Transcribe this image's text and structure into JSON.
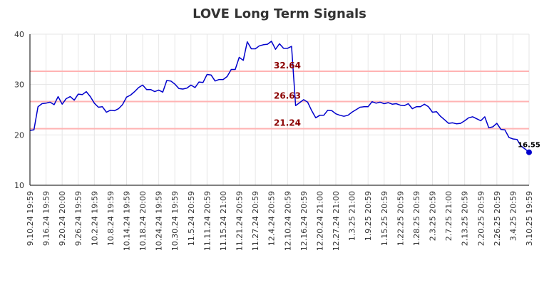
{
  "chart_data": {
    "type": "line",
    "title": "LOVE Long Term Signals",
    "xlabel": "",
    "ylabel": "",
    "ylim": [
      10,
      40
    ],
    "yticks": [
      10,
      20,
      30,
      40
    ],
    "grid": true,
    "x_tick_labels": [
      "9.10.24 19:59",
      "9.16.24 19:59",
      "9.20.24 20:00",
      "9.26.24 19:59",
      "10.2.24 19:59",
      "10.8.24 19:59",
      "10.14.24 19:59",
      "10.18.24 20:00",
      "10.24.24 19:59",
      "10.30.24 19:59",
      "11.5.24 20:59",
      "11.11.24 20:59",
      "11.15.24 21:00",
      "11.21.24 20:59",
      "11.27.24 20:59",
      "12.4.24 20:59",
      "12.10.24 20:59",
      "12.16.24 20:59",
      "12.20.24 21:00",
      "12.27.24 21:00",
      "1.3.25 21:00",
      "1.9.25 20:59",
      "1.15.25 20:59",
      "1.22.25 20:59",
      "1.28.25 20:59",
      "2.3.25 20:59",
      "2.7.25 21:00",
      "2.13.25 20:59",
      "2.20.25 20:59",
      "2.26.25 20:59",
      "3.4.25 20:59",
      "3.10.25 19:59"
    ],
    "reference_lines": [
      {
        "value": 32.64,
        "label": "32.64"
      },
      {
        "value": 26.63,
        "label": "26.63"
      },
      {
        "value": 21.24,
        "label": "21.24"
      }
    ],
    "series": [
      {
        "color": "#0000cc",
        "values": [
          20.9,
          21.0,
          25.6,
          26.2,
          26.3,
          26.5,
          26.0,
          27.6,
          26.1,
          27.2,
          27.6,
          26.9,
          28.1,
          28.0,
          28.6,
          27.6,
          26.3,
          25.5,
          25.6,
          24.5,
          24.9,
          24.8,
          25.2,
          26.0,
          27.5,
          27.9,
          28.6,
          29.4,
          29.9,
          29.0,
          29.0,
          28.6,
          28.9,
          28.5,
          30.8,
          30.7,
          30.1,
          29.2,
          29.1,
          29.3,
          29.9,
          29.4,
          30.5,
          30.4,
          32.0,
          31.9,
          30.7,
          31.0,
          31.0,
          31.6,
          33.0,
          33.0,
          35.4,
          34.8,
          38.5,
          37.1,
          37.1,
          37.7,
          37.9,
          38.0,
          38.6,
          37.0,
          38.1,
          37.2,
          37.2,
          37.6,
          25.8,
          26.4,
          27.0,
          26.5,
          24.8,
          23.4,
          23.9,
          23.9,
          24.9,
          24.8,
          24.2,
          23.9,
          23.7,
          23.9,
          24.5,
          25.0,
          25.5,
          25.6,
          25.6,
          26.6,
          26.3,
          26.5,
          26.2,
          26.4,
          26.1,
          26.2,
          25.9,
          25.8,
          26.2,
          25.2,
          25.6,
          25.6,
          26.1,
          25.6,
          24.5,
          24.6,
          23.7,
          23.0,
          22.3,
          22.4,
          22.2,
          22.3,
          22.8,
          23.4,
          23.6,
          23.2,
          22.8,
          23.6,
          21.4,
          21.6,
          22.3,
          21.1,
          21.0,
          19.5,
          19.2,
          19.1,
          17.8,
          17.2,
          16.55
        ]
      }
    ],
    "last_point_label": "16.55"
  }
}
